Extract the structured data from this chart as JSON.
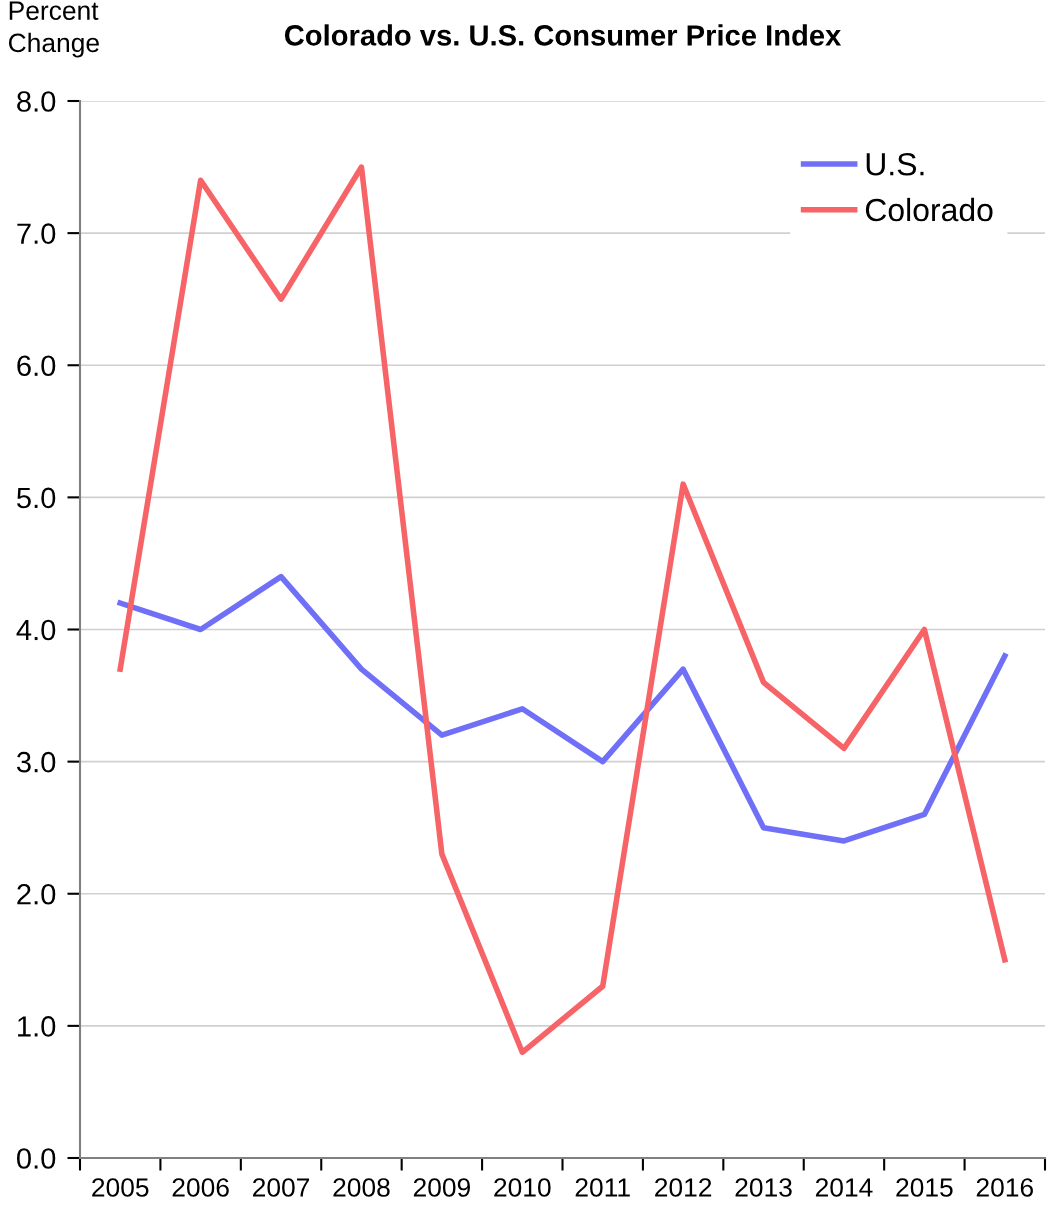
{
  "chart_data": {
    "type": "line",
    "title": "Colorado vs. U.S. Consumer Price Index",
    "ylabel": "Percent\nChange",
    "categories": [
      "2005",
      "2006",
      "2007",
      "2008",
      "2009",
      "2010",
      "2011",
      "2012",
      "2013",
      "2014",
      "2015",
      "2016"
    ],
    "series": [
      {
        "name": "U.S.",
        "color": "#6f6ff7",
        "values": [
          4.2,
          4.0,
          4.4,
          3.7,
          3.2,
          3.4,
          3.0,
          3.7,
          2.5,
          2.4,
          2.6,
          3.8
        ]
      },
      {
        "name": "Colorado",
        "color": "#f76468",
        "values": [
          3.7,
          7.4,
          6.5,
          7.5,
          2.3,
          0.8,
          1.3,
          5.1,
          3.6,
          3.1,
          4.0,
          1.5
        ]
      }
    ],
    "ylim": [
      0,
      8
    ],
    "yticks": [
      {
        "value": 0,
        "label": "0.0"
      },
      {
        "value": 1,
        "label": "1.0"
      },
      {
        "value": 2,
        "label": "2.0"
      },
      {
        "value": 3,
        "label": "3.0"
      },
      {
        "value": 4,
        "label": "4.0"
      },
      {
        "value": 5,
        "label": "5.0"
      },
      {
        "value": 6,
        "label": "6.0"
      },
      {
        "value": 7,
        "label": "7.0"
      },
      {
        "value": 8,
        "label": "8.0"
      }
    ],
    "grid": "y",
    "legend": "top right",
    "marker": "none",
    "line_style": "solid"
  }
}
